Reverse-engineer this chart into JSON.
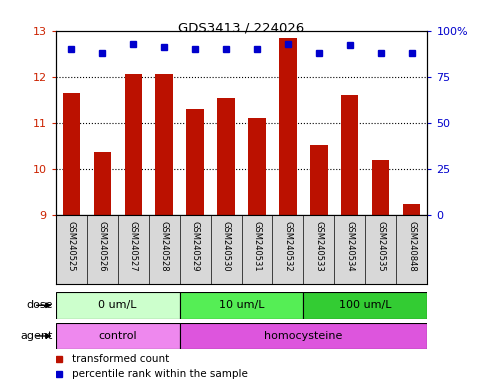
{
  "title": "GDS3413 / 224026",
  "samples": [
    "GSM240525",
    "GSM240526",
    "GSM240527",
    "GSM240528",
    "GSM240529",
    "GSM240530",
    "GSM240531",
    "GSM240532",
    "GSM240533",
    "GSM240534",
    "GSM240535",
    "GSM240848"
  ],
  "bar_values": [
    11.65,
    10.37,
    12.05,
    12.07,
    11.3,
    11.55,
    11.1,
    12.85,
    10.52,
    11.6,
    10.2,
    9.25
  ],
  "percentile_values": [
    90,
    88,
    93,
    91,
    90,
    90,
    90,
    93,
    88,
    92,
    88,
    88
  ],
  "bar_bottom": 9,
  "ylim_left": [
    9,
    13
  ],
  "ylim_right": [
    0,
    100
  ],
  "yticks_left": [
    9,
    10,
    11,
    12,
    13
  ],
  "yticks_right": [
    0,
    25,
    50,
    75,
    100
  ],
  "ytick_labels_right": [
    "0",
    "25",
    "50",
    "75",
    "100%"
  ],
  "bar_color": "#bb1100",
  "dot_color": "#0000cc",
  "grid_color": "#000000",
  "dose_groups": [
    {
      "label": "0 um/L",
      "start": 0,
      "end": 4,
      "color": "#ccffcc"
    },
    {
      "label": "10 um/L",
      "start": 4,
      "end": 8,
      "color": "#55ee55"
    },
    {
      "label": "100 um/L",
      "start": 8,
      "end": 12,
      "color": "#33cc33"
    }
  ],
  "agent_groups": [
    {
      "label": "control",
      "start": 0,
      "end": 4,
      "color": "#ee88ee"
    },
    {
      "label": "homocysteine",
      "start": 4,
      "end": 12,
      "color": "#dd55dd"
    }
  ],
  "dose_label": "dose",
  "agent_label": "agent",
  "legend_bar_label": "transformed count",
  "legend_dot_label": "percentile rank within the sample",
  "ylabel_left_color": "#cc2200",
  "ylabel_right_color": "#0000cc",
  "sample_bg_color": "#d8d8d8",
  "fig_bg_color": "#ffffff"
}
